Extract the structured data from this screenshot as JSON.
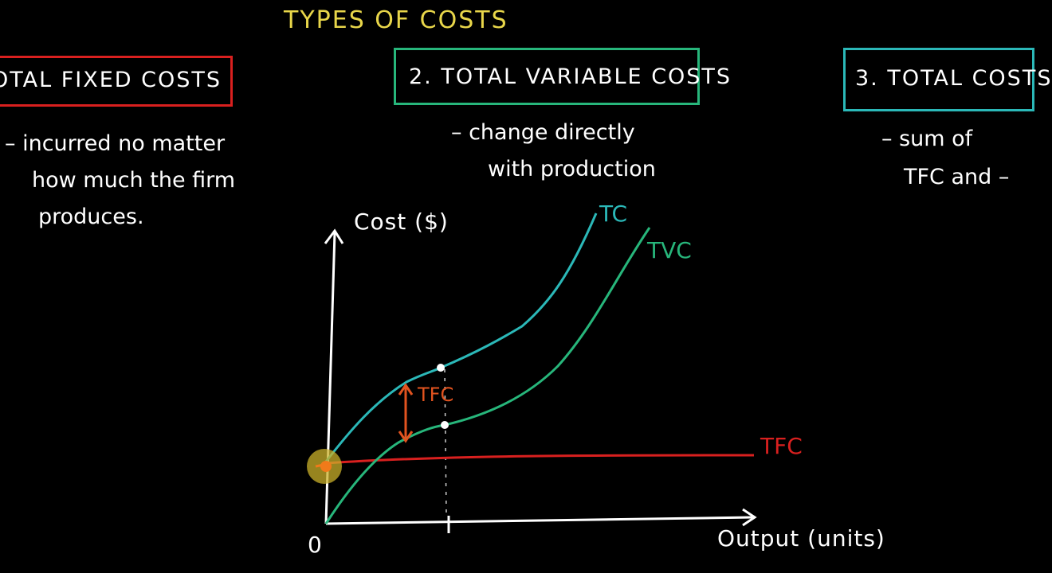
{
  "title": "TYPES OF COSTS",
  "boxes": {
    "fixed": "OTAL FIXED COSTS",
    "variable": "2. TOTAL VARIABLE COSTS",
    "total": "3. TOTAL COSTS"
  },
  "notes": {
    "fixed_1": "– incurred no matter",
    "fixed_2": "how much the firm",
    "fixed_3": "produces.",
    "variable_1": "– change directly",
    "variable_2": "with production",
    "total_1": "– sum of",
    "total_2": "TFC and –"
  },
  "graph": {
    "y_label": "Cost ($)",
    "x_label": "Output (units)",
    "origin": "0",
    "tc_label": "TC",
    "tvc_label": "TVC",
    "tfc_label": "TFC",
    "tfc_gap_label": "TFC"
  },
  "colors": {
    "tc": "#2bb8b8",
    "tvc": "#27b67b",
    "tfc": "#d9201f",
    "gap": "#e2531f",
    "title": "#e8d64a"
  }
}
